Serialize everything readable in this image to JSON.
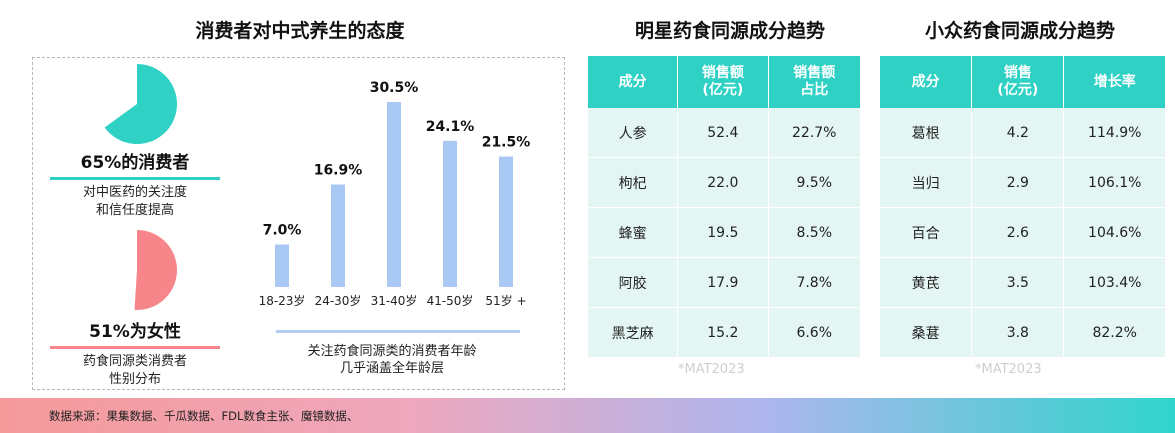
{
  "left": {
    "title": "消费者对中式养生的态度",
    "stat1": {
      "headline": "65%的消费者",
      "line1": "对中医药的关注度",
      "line2": "和信任度提高",
      "value": 0.65
    },
    "stat2": {
      "headline": "51%为女性",
      "line1": "药食同源类消费者",
      "line2": "性别分布",
      "value": 0.51
    },
    "bar_note_line1": "关注药食同源类的消费者年龄",
    "bar_note_line2": "几乎涵盖全年龄层"
  },
  "chart_data": {
    "type": "bar",
    "categories": [
      "18-23岁",
      "24-30岁",
      "31-40岁",
      "41-50岁",
      "51岁 +"
    ],
    "values": [
      7.0,
      16.9,
      30.5,
      24.1,
      21.5
    ],
    "value_labels": [
      "7.0%",
      "16.9%",
      "30.5%",
      "24.1%",
      "21.5%"
    ],
    "unit": "%",
    "ylim": [
      0,
      30.5
    ],
    "grid": false,
    "bar_color": "#a9c9f4",
    "baseline_color": "#b3cdf2"
  },
  "table1": {
    "title": "明星药食同源成分趋势",
    "headers": [
      [
        "成分"
      ],
      [
        "销售额",
        "(亿元)"
      ],
      [
        "销售额",
        "占比"
      ]
    ],
    "rows": [
      [
        "人参",
        "52.4",
        "22.7%"
      ],
      [
        "枸杞",
        "22.0",
        "9.5%"
      ],
      [
        "蜂蜜",
        "19.5",
        "8.5%"
      ],
      [
        "阿胶",
        "17.9",
        "7.8%"
      ],
      [
        "黑芝麻",
        "15.2",
        "6.6%"
      ]
    ],
    "note": "*MAT2023"
  },
  "table2": {
    "title": "小众药食同源成分趋势",
    "headers": [
      [
        "成分"
      ],
      [
        "销售",
        "(亿元)"
      ],
      [
        "增长率"
      ]
    ],
    "rows": [
      [
        "葛根",
        "4.2",
        "114.9%"
      ],
      [
        "当归",
        "2.9",
        "106.1%"
      ],
      [
        "百合",
        "2.6",
        "104.6%"
      ],
      [
        "黄芪",
        "3.5",
        "103.4%"
      ],
      [
        "桑葚",
        "3.8",
        "82.2%"
      ]
    ],
    "note": "*MAT2023"
  },
  "footer": {
    "source": "数据来源：果集数据、千瓜数据、FDL数食主张、魔镜数据、"
  },
  "colors": {
    "teal": "#2ed1c4",
    "pink": "#f7868a",
    "table_header": "#2ed1c4",
    "table_cell": "#e3f6f3",
    "bar": "#a9c9f4"
  }
}
